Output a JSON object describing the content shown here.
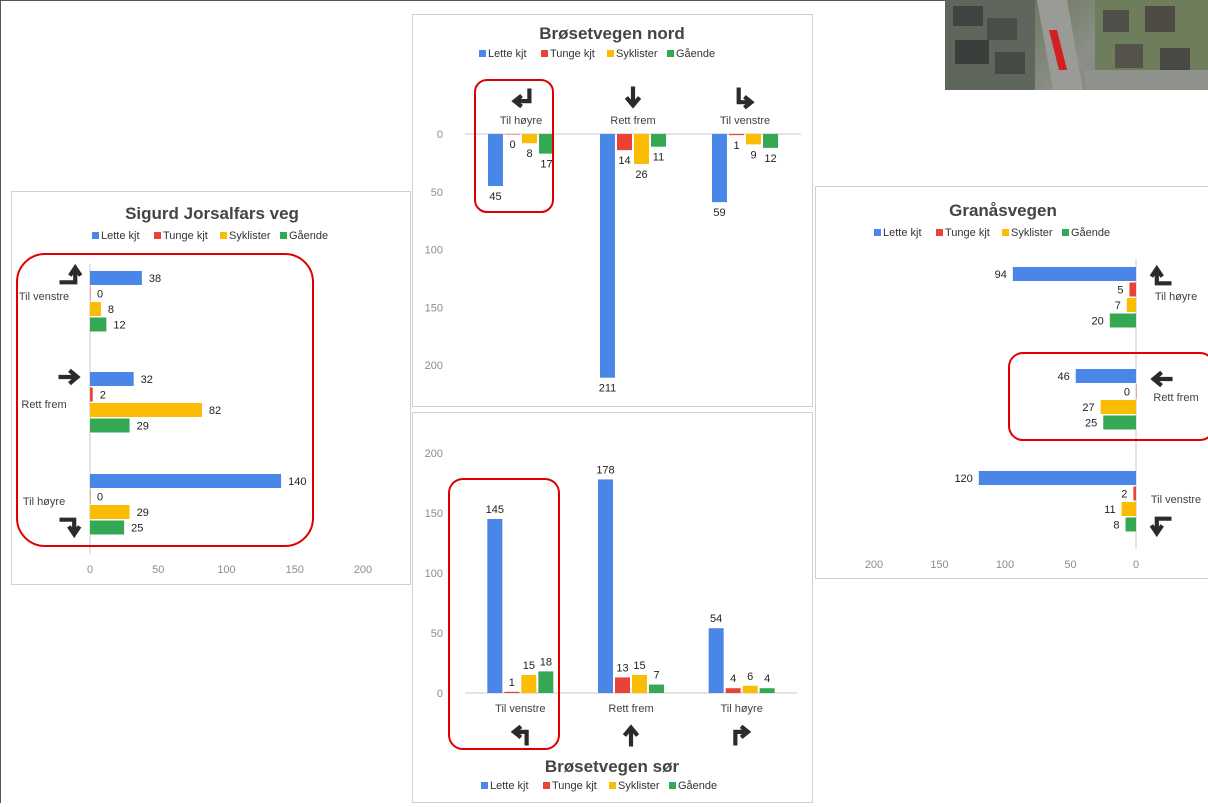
{
  "colors": {
    "lette": "#4a86e8",
    "tunge": "#ea4335",
    "syklister": "#fbbc04",
    "gaaende": "#34a853",
    "highlight": "#e00000",
    "axis": "#c8c8c8",
    "tick": "#8c8c8c",
    "label": "#404040"
  },
  "legend": [
    "Lette kjt",
    "Tunge kjt",
    "Syklister",
    "Gående"
  ],
  "chart_data": [
    {
      "id": "nord",
      "type": "bar",
      "title": "Brøsetvegen nord",
      "orientation": "vertical-downward",
      "categories": [
        "Til høyre",
        "Rett frem",
        "Til venstre"
      ],
      "category_icons": [
        "turn-left-down-icon",
        "arrow-down-icon",
        "turn-down-right-icon"
      ],
      "series": [
        {
          "name": "Lette kjt",
          "values": [
            45,
            211,
            59
          ]
        },
        {
          "name": "Tunge kjt",
          "values": [
            0,
            14,
            1
          ]
        },
        {
          "name": "Syklister",
          "values": [
            8,
            26,
            9
          ]
        },
        {
          "name": "Gående",
          "values": [
            17,
            11,
            12
          ]
        }
      ],
      "ticks": [
        "0",
        "50",
        "100",
        "150",
        "200"
      ],
      "ylim": [
        0,
        220
      ]
    },
    {
      "id": "sor",
      "type": "bar",
      "title": "Brøsetvegen sør",
      "orientation": "vertical",
      "categories": [
        "Til venstre",
        "Rett frem",
        "Til høyre"
      ],
      "category_icons": [
        "turn-up-left-icon",
        "arrow-up-icon",
        "turn-up-right-icon"
      ],
      "series": [
        {
          "name": "Lette kjt",
          "values": [
            145,
            178,
            54
          ]
        },
        {
          "name": "Tunge kjt",
          "values": [
            1,
            13,
            4
          ]
        },
        {
          "name": "Syklister",
          "values": [
            15,
            15,
            6
          ]
        },
        {
          "name": "Gående",
          "values": [
            18,
            7,
            4
          ]
        }
      ],
      "ticks": [
        "0",
        "50",
        "100",
        "150",
        "200"
      ],
      "ylim": [
        0,
        200
      ]
    },
    {
      "id": "sigurd",
      "type": "bar",
      "title": "Sigurd Jorsalfars veg",
      "orientation": "horizontal",
      "categories": [
        "Til venstre",
        "Rett frem",
        "Til høyre"
      ],
      "category_icons": [
        "turn-right-up-icon",
        "arrow-right-icon",
        "turn-right-down-icon"
      ],
      "series": [
        {
          "name": "Lette kjt",
          "values": [
            38,
            32,
            140
          ]
        },
        {
          "name": "Tunge kjt",
          "values": [
            0,
            2,
            0
          ]
        },
        {
          "name": "Syklister",
          "values": [
            8,
            82,
            29
          ]
        },
        {
          "name": "Gående",
          "values": [
            12,
            29,
            25
          ]
        }
      ],
      "ticks": [
        "0",
        "50",
        "100",
        "150",
        "200"
      ],
      "xlim": [
        0,
        200
      ]
    },
    {
      "id": "granas",
      "type": "bar",
      "title": "Granåsvegen",
      "orientation": "horizontal-reversed",
      "categories": [
        "Til høyre",
        "Rett frem",
        "Til venstre"
      ],
      "category_icons": [
        "turn-left-up-icon",
        "arrow-left-icon",
        "turn-left-down-icon"
      ],
      "series": [
        {
          "name": "Lette kjt",
          "values": [
            94,
            46,
            120
          ]
        },
        {
          "name": "Tunge kjt",
          "values": [
            5,
            0,
            2
          ]
        },
        {
          "name": "Syklister",
          "values": [
            7,
            27,
            11
          ]
        },
        {
          "name": "Gående",
          "values": [
            20,
            25,
            8
          ]
        }
      ],
      "ticks": [
        "200",
        "150",
        "100",
        "50",
        "0"
      ],
      "xlim": [
        0,
        200
      ]
    }
  ]
}
